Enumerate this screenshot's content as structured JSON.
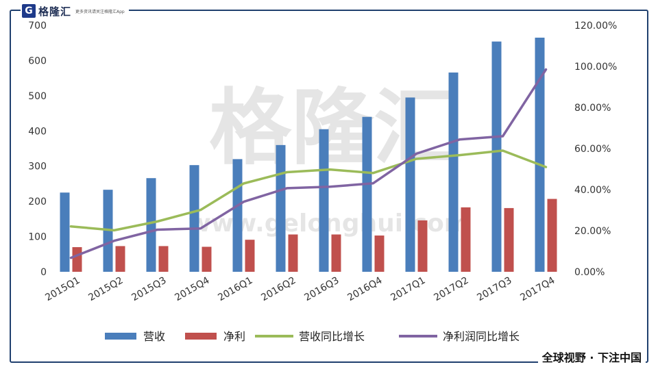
{
  "logo": {
    "mark": "G",
    "name": "格隆汇",
    "tagline": "更多资讯请关注格隆汇App"
  },
  "watermark": {
    "cn": "格隆汇",
    "url": "www.gelonghui.com"
  },
  "footer": "全球视野 · 下注中国",
  "colors": {
    "revenue": "#4a7ebb",
    "profit": "#c0504d",
    "rev_growth": "#9bbb59",
    "profit_growth": "#8064a2",
    "border": "#1f3f6e"
  },
  "chart_data": {
    "type": "bar",
    "categories": [
      "2015Q1",
      "2015Q2",
      "2015Q3",
      "2015Q4",
      "2016Q1",
      "2016Q2",
      "2016Q3",
      "2016Q4",
      "2017Q1",
      "2017Q2",
      "2017Q3",
      "2017Q4"
    ],
    "left_axis": {
      "ticks": [
        "0",
        "100",
        "200",
        "300",
        "400",
        "500",
        "600",
        "700"
      ],
      "ylim": [
        0,
        700
      ]
    },
    "right_axis": {
      "ticks": [
        "0.00%",
        "20.00%",
        "40.00%",
        "60.00%",
        "80.00%",
        "100.00%",
        "120.00%"
      ],
      "ylim": [
        0,
        120
      ]
    },
    "series": [
      {
        "name": "营收",
        "type": "bar",
        "axis": "left",
        "values": [
          225,
          233,
          266,
          303,
          320,
          360,
          405,
          440,
          495,
          566,
          654,
          665
        ]
      },
      {
        "name": "净利",
        "type": "bar",
        "axis": "left",
        "values": [
          70,
          73,
          73,
          71,
          91,
          106,
          106,
          103,
          146,
          183,
          181,
          207
        ]
      },
      {
        "name": "营收同比增长",
        "type": "line",
        "axis": "right",
        "values": [
          22.1,
          20.2,
          24.5,
          30.1,
          43.0,
          48.5,
          49.8,
          48.1,
          55.0,
          56.8,
          59.0,
          51.0
        ]
      },
      {
        "name": "净利润同比增长",
        "type": "line",
        "axis": "right",
        "values": [
          6.8,
          15.1,
          20.5,
          21.1,
          34.1,
          40.7,
          41.4,
          43.1,
          57.5,
          64.4,
          66.0,
          98.5
        ]
      }
    ],
    "legend_position": "bottom",
    "grid": false
  }
}
